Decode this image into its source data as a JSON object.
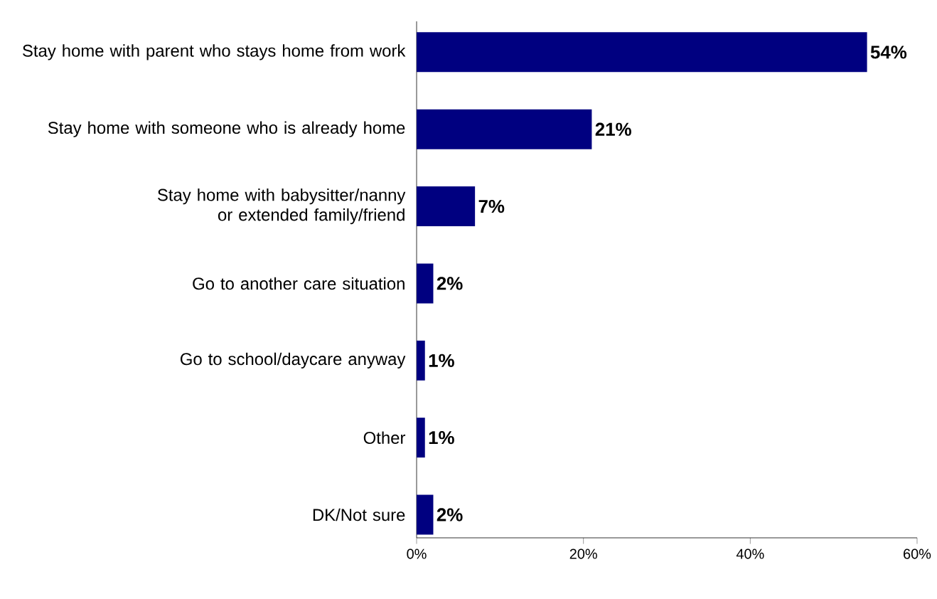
{
  "chart_data": {
    "type": "bar",
    "orientation": "horizontal",
    "categories": [
      "Stay home with parent who stays home from work",
      "Stay home with someone who is already home",
      "Stay home with babysitter/nanny or extended family/friend",
      "Go to another care situation",
      "Go to school/daycare anyway",
      "Other",
      "DK/Not sure"
    ],
    "values": [
      54,
      21,
      7,
      2,
      1,
      1,
      2
    ],
    "value_labels": [
      "54%",
      "21%",
      "7%",
      "2%",
      "1%",
      "1%",
      "2%"
    ],
    "color": "#000080",
    "xlim": [
      0,
      60
    ],
    "xticks": [
      {
        "value": 0,
        "label": "0%"
      },
      {
        "value": 20,
        "label": "20%"
      },
      {
        "value": 40,
        "label": "40%"
      },
      {
        "value": 60,
        "label": "60%"
      }
    ]
  }
}
